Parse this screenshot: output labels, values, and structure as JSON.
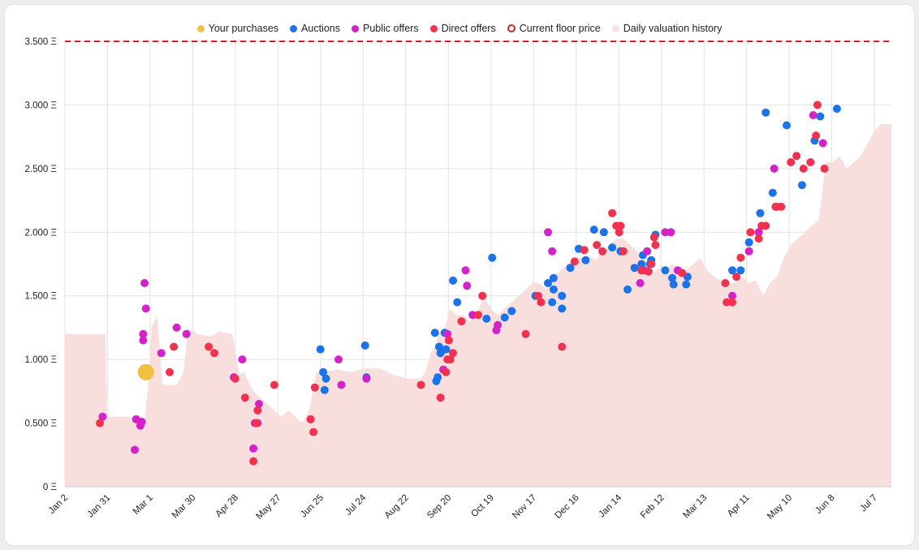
{
  "chart_data": {
    "type": "scatter",
    "title": "",
    "xlabel": "",
    "ylabel": "",
    "x_ticks": [
      "Jan 2",
      "Jan 31",
      "Mar 1",
      "Mar 30",
      "Apr 28",
      "May 27",
      "Jun 25",
      "Jul 24",
      "Aug 22",
      "Sep 20",
      "Oct 19",
      "Nov 17",
      "Dec 16",
      "Jan 14",
      "Feb 12",
      "Mar 13",
      "Apr 11",
      "May 10",
      "Jun 8",
      "Jul 7"
    ],
    "y_ticks": [
      "0 Ξ",
      "0.500 Ξ",
      "1.000 Ξ",
      "1.500 Ξ",
      "2.000 Ξ",
      "2.500 Ξ",
      "3.000 Ξ",
      "3.500 Ξ"
    ],
    "ylim": [
      0,
      3.5
    ],
    "xlim": [
      0,
      592
    ],
    "grid": true,
    "legend_position": "top-center",
    "floor_price": 3.5,
    "legend": [
      {
        "name": "Your purchases",
        "color": "#f0c040",
        "style": "filled"
      },
      {
        "name": "Auctions",
        "color": "#1a73e8",
        "style": "filled"
      },
      {
        "name": "Public offers",
        "color": "#d521c9",
        "style": "filled"
      },
      {
        "name": "Direct offers",
        "color": "#f0324f",
        "style": "filled"
      },
      {
        "name": "Current floor price",
        "color": "#c62828",
        "style": "ring"
      },
      {
        "name": "Daily valuation history",
        "color": "#f9dede",
        "style": "filled"
      }
    ],
    "valuation_history": [
      [
        0,
        1.2
      ],
      [
        29,
        1.2
      ],
      [
        30,
        0.55
      ],
      [
        55,
        0.55
      ],
      [
        57,
        0.5
      ],
      [
        60,
        0.85
      ],
      [
        62,
        1.25
      ],
      [
        66,
        1.35
      ],
      [
        70,
        0.8
      ],
      [
        80,
        0.8
      ],
      [
        85,
        0.9
      ],
      [
        88,
        1.25
      ],
      [
        95,
        1.2
      ],
      [
        105,
        1.18
      ],
      [
        110,
        1.22
      ],
      [
        120,
        1.2
      ],
      [
        125,
        0.88
      ],
      [
        128,
        0.9
      ],
      [
        135,
        0.75
      ],
      [
        140,
        0.7
      ],
      [
        145,
        0.65
      ],
      [
        150,
        0.6
      ],
      [
        155,
        0.55
      ],
      [
        160,
        0.6
      ],
      [
        165,
        0.55
      ],
      [
        170,
        0.5
      ],
      [
        175,
        0.6
      ],
      [
        180,
        0.9
      ],
      [
        185,
        0.9
      ],
      [
        195,
        0.92
      ],
      [
        205,
        0.9
      ],
      [
        215,
        0.93
      ],
      [
        225,
        0.93
      ],
      [
        235,
        0.88
      ],
      [
        245,
        0.85
      ],
      [
        255,
        0.85
      ],
      [
        258,
        0.9
      ],
      [
        262,
        1.05
      ],
      [
        265,
        1.1
      ],
      [
        268,
        1.2
      ],
      [
        272,
        1.25
      ],
      [
        276,
        1.4
      ],
      [
        280,
        1.35
      ],
      [
        285,
        1.35
      ],
      [
        290,
        1.3
      ],
      [
        295,
        1.35
      ],
      [
        300,
        1.5
      ],
      [
        305,
        1.4
      ],
      [
        310,
        1.35
      ],
      [
        315,
        1.4
      ],
      [
        320,
        1.45
      ],
      [
        325,
        1.5
      ],
      [
        330,
        1.55
      ],
      [
        335,
        1.6
      ],
      [
        340,
        1.6
      ],
      [
        345,
        1.55
      ],
      [
        350,
        1.65
      ],
      [
        355,
        1.7
      ],
      [
        360,
        1.75
      ],
      [
        365,
        1.8
      ],
      [
        370,
        1.8
      ],
      [
        375,
        1.82
      ],
      [
        380,
        1.78
      ],
      [
        385,
        1.85
      ],
      [
        390,
        1.9
      ],
      [
        395,
        1.95
      ],
      [
        400,
        1.95
      ],
      [
        405,
        1.9
      ],
      [
        410,
        1.85
      ],
      [
        415,
        1.7
      ],
      [
        420,
        1.65
      ],
      [
        425,
        1.72
      ],
      [
        430,
        1.7
      ],
      [
        435,
        1.75
      ],
      [
        440,
        1.72
      ],
      [
        445,
        1.7
      ],
      [
        450,
        1.75
      ],
      [
        455,
        1.8
      ],
      [
        460,
        1.7
      ],
      [
        465,
        1.65
      ],
      [
        470,
        1.62
      ],
      [
        475,
        1.6
      ],
      [
        480,
        1.6
      ],
      [
        485,
        1.65
      ],
      [
        490,
        1.6
      ],
      [
        495,
        1.62
      ],
      [
        500,
        1.5
      ],
      [
        505,
        1.6
      ],
      [
        510,
        1.65
      ],
      [
        515,
        1.8
      ],
      [
        520,
        1.9
      ],
      [
        525,
        1.95
      ],
      [
        530,
        2.0
      ],
      [
        535,
        2.05
      ],
      [
        540,
        2.1
      ],
      [
        545,
        2.55
      ],
      [
        550,
        2.55
      ],
      [
        555,
        2.6
      ],
      [
        560,
        2.5
      ],
      [
        565,
        2.55
      ],
      [
        570,
        2.6
      ],
      [
        575,
        2.7
      ],
      [
        580,
        2.8
      ],
      [
        585,
        2.85
      ],
      [
        592,
        2.85
      ]
    ],
    "series": [
      {
        "name": "Your purchases",
        "points": [
          [
            58,
            0.9
          ]
        ]
      },
      {
        "name": "Auctions",
        "points": [
          [
            183,
            1.08
          ],
          [
            185,
            0.9
          ],
          [
            186,
            0.76
          ],
          [
            187,
            0.85
          ],
          [
            215,
            1.11
          ],
          [
            216,
            0.86
          ],
          [
            265,
            1.21
          ],
          [
            266,
            0.83
          ],
          [
            267,
            0.86
          ],
          [
            268,
            1.1
          ],
          [
            269,
            1.05
          ],
          [
            270,
            1.07
          ],
          [
            272,
            1.21
          ],
          [
            273,
            1.08
          ],
          [
            278,
            1.62
          ],
          [
            281,
            1.45
          ],
          [
            302,
            1.32
          ],
          [
            306,
            1.8
          ],
          [
            315,
            1.33
          ],
          [
            320,
            1.38
          ],
          [
            337,
            1.5
          ],
          [
            346,
            1.6
          ],
          [
            349,
            1.45
          ],
          [
            350,
            1.64
          ],
          [
            350,
            1.55
          ],
          [
            356,
            1.4
          ],
          [
            356,
            1.5
          ],
          [
            362,
            1.72
          ],
          [
            368,
            1.87
          ],
          [
            373,
            1.78
          ],
          [
            379,
            2.02
          ],
          [
            386,
            2.0
          ],
          [
            392,
            1.88
          ],
          [
            398,
            1.85
          ],
          [
            403,
            1.55
          ],
          [
            408,
            1.72
          ],
          [
            413,
            1.75
          ],
          [
            414,
            1.82
          ],
          [
            419,
            1.75
          ],
          [
            420,
            1.78
          ],
          [
            423,
            1.98
          ],
          [
            430,
            1.7
          ],
          [
            435,
            1.64
          ],
          [
            436,
            1.59
          ],
          [
            445,
            1.59
          ],
          [
            446,
            1.65
          ],
          [
            478,
            1.7
          ],
          [
            484,
            1.7
          ],
          [
            490,
            1.92
          ],
          [
            498,
            2.15
          ],
          [
            502,
            2.94
          ],
          [
            507,
            2.31
          ],
          [
            517,
            2.84
          ],
          [
            528,
            2.37
          ],
          [
            537,
            2.72
          ],
          [
            541,
            2.91
          ],
          [
            553,
            2.97
          ]
        ]
      },
      {
        "name": "Public offers",
        "points": [
          [
            27,
            0.55
          ],
          [
            50,
            0.29
          ],
          [
            51,
            0.53
          ],
          [
            54,
            0.48
          ],
          [
            55,
            0.51
          ],
          [
            56,
            1.15
          ],
          [
            56,
            1.2
          ],
          [
            57,
            1.6
          ],
          [
            58,
            1.4
          ],
          [
            69,
            1.05
          ],
          [
            80,
            1.25
          ],
          [
            87,
            1.2
          ],
          [
            121,
            0.86
          ],
          [
            127,
            1.0
          ],
          [
            135,
            0.3
          ],
          [
            136,
            0.5
          ],
          [
            138,
            0.5
          ],
          [
            139,
            0.65
          ],
          [
            196,
            1.0
          ],
          [
            198,
            0.8
          ],
          [
            216,
            0.85
          ],
          [
            271,
            0.92
          ],
          [
            274,
            1.2
          ],
          [
            287,
            1.7
          ],
          [
            288,
            1.58
          ],
          [
            292,
            1.35
          ],
          [
            309,
            1.23
          ],
          [
            310,
            1.27
          ],
          [
            346,
            2.0
          ],
          [
            349,
            1.85
          ],
          [
            412,
            1.6
          ],
          [
            415,
            1.7
          ],
          [
            417,
            1.85
          ],
          [
            430,
            2.0
          ],
          [
            434,
            2.0
          ],
          [
            439,
            1.7
          ],
          [
            478,
            1.5
          ],
          [
            490,
            1.85
          ],
          [
            497,
            2.0
          ],
          [
            508,
            2.5
          ],
          [
            536,
            2.92
          ],
          [
            543,
            2.7
          ]
        ]
      },
      {
        "name": "Direct offers",
        "points": [
          [
            25,
            0.5
          ],
          [
            75,
            0.9
          ],
          [
            78,
            1.1
          ],
          [
            103,
            1.1
          ],
          [
            107,
            1.05
          ],
          [
            122,
            0.85
          ],
          [
            129,
            0.7
          ],
          [
            135,
            0.2
          ],
          [
            137,
            0.5
          ],
          [
            138,
            0.6
          ],
          [
            150,
            0.8
          ],
          [
            176,
            0.53
          ],
          [
            178,
            0.43
          ],
          [
            179,
            0.78
          ],
          [
            255,
            0.8
          ],
          [
            269,
            0.7
          ],
          [
            273,
            0.9
          ],
          [
            274,
            1.0
          ],
          [
            275,
            1.15
          ],
          [
            276,
            1.0
          ],
          [
            278,
            1.05
          ],
          [
            284,
            1.3
          ],
          [
            296,
            1.35
          ],
          [
            299,
            1.5
          ],
          [
            330,
            1.2
          ],
          [
            339,
            1.5
          ],
          [
            341,
            1.45
          ],
          [
            356,
            1.1
          ],
          [
            365,
            1.77
          ],
          [
            372,
            1.86
          ],
          [
            381,
            1.9
          ],
          [
            385,
            1.85
          ],
          [
            392,
            2.15
          ],
          [
            395,
            2.05
          ],
          [
            397,
            2.0
          ],
          [
            398,
            2.05
          ],
          [
            400,
            1.85
          ],
          [
            413,
            1.7
          ],
          [
            418,
            1.69
          ],
          [
            420,
            1.75
          ],
          [
            422,
            1.96
          ],
          [
            423,
            1.9
          ],
          [
            442,
            1.68
          ],
          [
            473,
            1.6
          ],
          [
            474,
            1.45
          ],
          [
            478,
            1.45
          ],
          [
            481,
            1.65
          ],
          [
            484,
            1.8
          ],
          [
            491,
            2.0
          ],
          [
            497,
            1.95
          ],
          [
            499,
            2.05
          ],
          [
            502,
            2.05
          ],
          [
            509,
            2.2
          ],
          [
            510,
            2.2
          ],
          [
            513,
            2.2
          ],
          [
            520,
            2.55
          ],
          [
            524,
            2.6
          ],
          [
            529,
            2.5
          ],
          [
            534,
            2.55
          ],
          [
            538,
            2.76
          ],
          [
            539,
            3.0
          ],
          [
            544,
            2.5
          ]
        ]
      }
    ]
  }
}
